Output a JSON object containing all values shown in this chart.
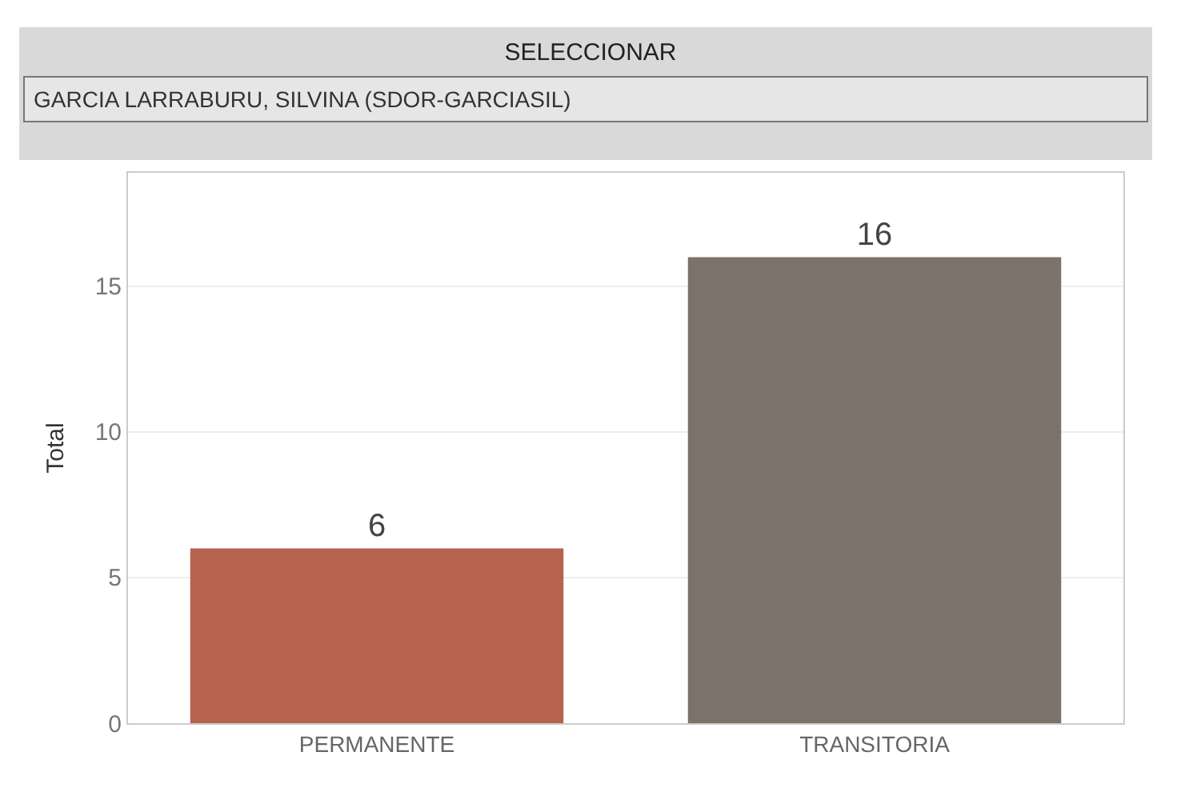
{
  "chart_data": {
    "type": "bar",
    "title": "SELECCIONAR",
    "subtitle": "GARCIA LARRABURU, SILVINA (SDOR-GARCIASIL)",
    "ylabel": "Total",
    "categories": [
      "PERMANENTE",
      "TRANSITORIA"
    ],
    "values": [
      6,
      16
    ],
    "colors": [
      "#b5634f",
      "#7b736a"
    ],
    "ylim": [
      0,
      18.9
    ],
    "yticks": [
      0,
      5,
      10,
      15
    ],
    "grid": "y",
    "data_labels": true,
    "legend": false
  }
}
